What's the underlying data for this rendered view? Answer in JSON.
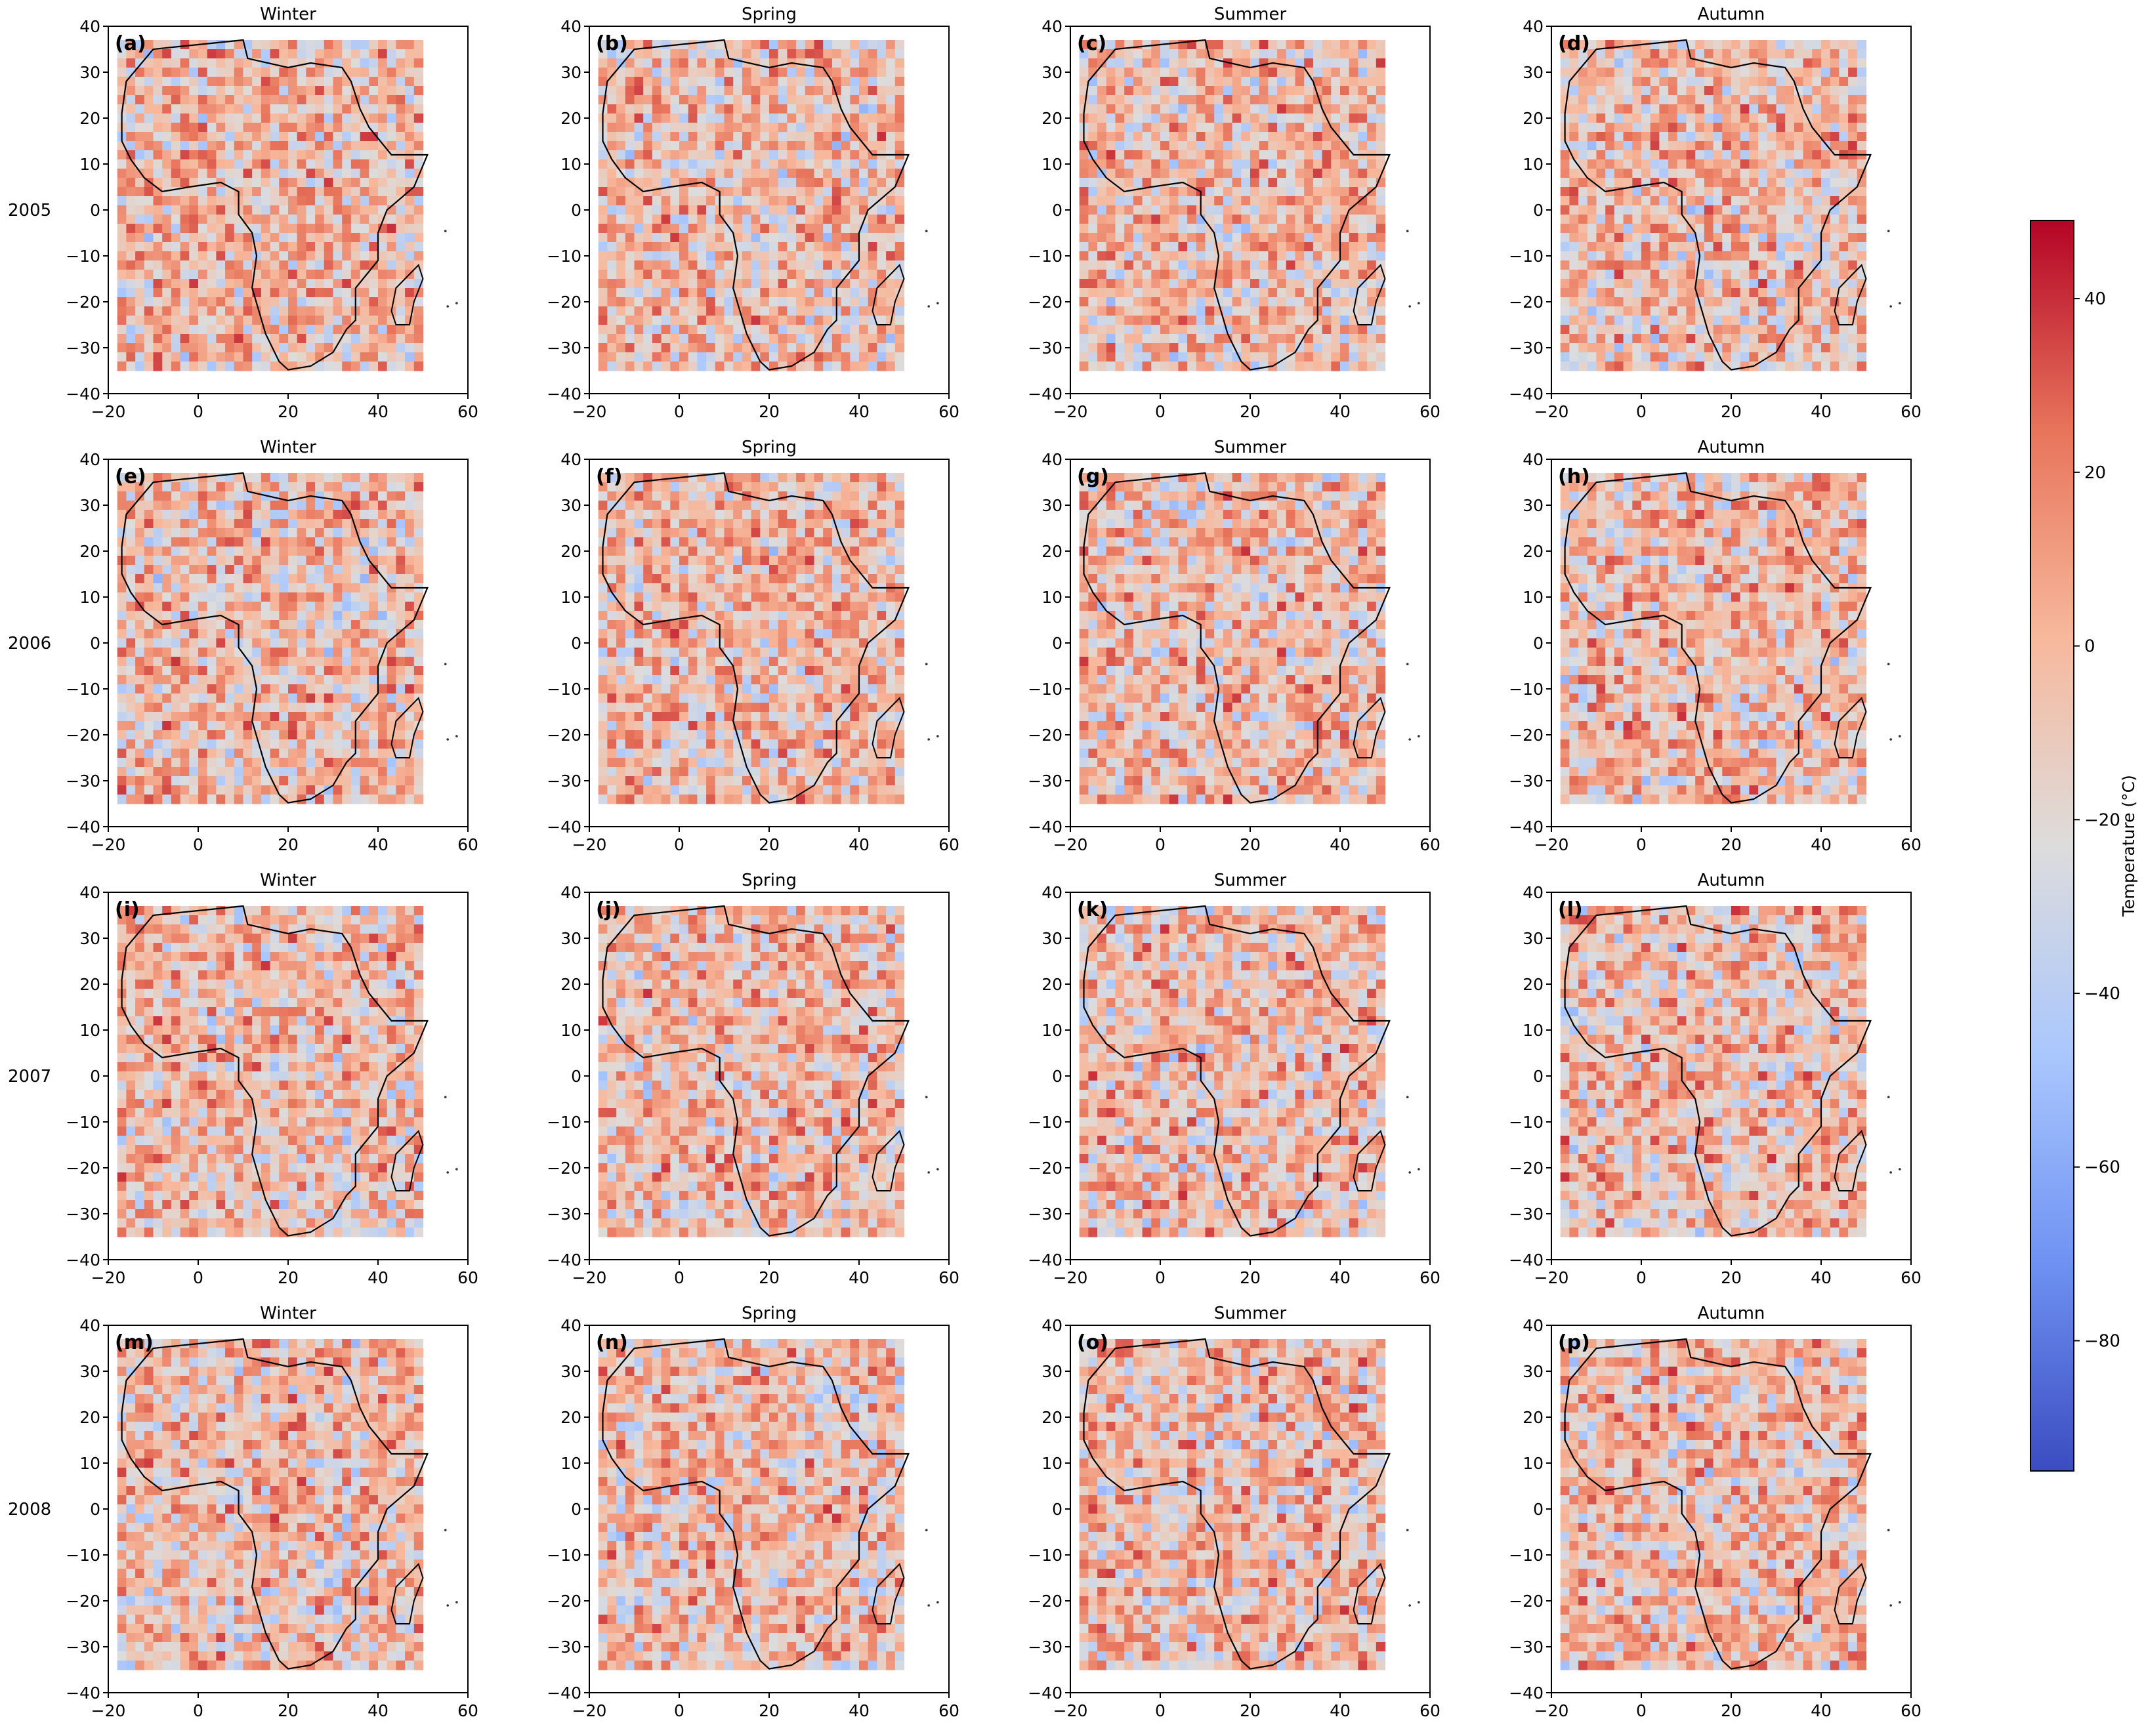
{
  "figure": {
    "years": [
      "2005",
      "2006",
      "2007",
      "2008"
    ],
    "seasons": [
      "Winter",
      "Spring",
      "Summer",
      "Autumn"
    ],
    "panel_letters": [
      "(a)",
      "(b)",
      "(c)",
      "(d)",
      "(e)",
      "(f)",
      "(g)",
      "(h)",
      "(i)",
      "(j)",
      "(k)",
      "(l)",
      "(m)",
      "(n)",
      "(o)",
      "(p)"
    ]
  },
  "chart_data": {
    "type": "heatmap",
    "description_of_layout": "4x4 grid of gridded temperature maps over Africa",
    "xlim": [
      -20,
      60
    ],
    "ylim": [
      -40,
      40
    ],
    "x_ticks": [
      "-20",
      "0",
      "20",
      "40",
      "60"
    ],
    "y_ticks": [
      "40",
      "30",
      "20",
      "10",
      "0",
      "-10",
      "-20",
      "-30",
      "-40"
    ],
    "data_extent": {
      "lon": [
        -18,
        50
      ],
      "lat": [
        -34,
        37
      ]
    },
    "grid": false,
    "colormap": "coolwarm",
    "colormap_stops": [
      "#3b4cc0",
      "#6f92f3",
      "#aac7fd",
      "#dddcdc",
      "#f7b89c",
      "#e7745b",
      "#b40426"
    ],
    "colorbar": {
      "label": "Temperature (°C)",
      "range": [
        -95,
        49
      ],
      "ticks": [
        40,
        20,
        0,
        -20,
        -40,
        -60,
        -80
      ],
      "tick_labels": [
        "40",
        "20",
        "0",
        "−20",
        "−40",
        "−60",
        "−80"
      ],
      "placement": "right"
    },
    "panels": [
      {
        "letter": "(a)",
        "year": "2005",
        "season": "Winter"
      },
      {
        "letter": "(b)",
        "year": "2005",
        "season": "Spring"
      },
      {
        "letter": "(c)",
        "year": "2005",
        "season": "Summer"
      },
      {
        "letter": "(d)",
        "year": "2005",
        "season": "Autumn"
      },
      {
        "letter": "(e)",
        "year": "2006",
        "season": "Winter"
      },
      {
        "letter": "(f)",
        "year": "2006",
        "season": "Spring"
      },
      {
        "letter": "(g)",
        "year": "2006",
        "season": "Summer"
      },
      {
        "letter": "(h)",
        "year": "2006",
        "season": "Autumn"
      },
      {
        "letter": "(i)",
        "year": "2007",
        "season": "Winter"
      },
      {
        "letter": "(j)",
        "year": "2007",
        "season": "Spring"
      },
      {
        "letter": "(k)",
        "year": "2007",
        "season": "Summer"
      },
      {
        "letter": "(l)",
        "year": "2007",
        "season": "Autumn"
      },
      {
        "letter": "(m)",
        "year": "2008",
        "season": "Winter"
      },
      {
        "letter": "(n)",
        "year": "2008",
        "season": "Spring"
      },
      {
        "letter": "(o)",
        "year": "2008",
        "season": "Summer"
      },
      {
        "letter": "(p)",
        "year": "2008",
        "season": "Autumn"
      }
    ]
  },
  "colors": {
    "axis": "#000000",
    "coastline": "#000000",
    "background": "#ffffff"
  }
}
